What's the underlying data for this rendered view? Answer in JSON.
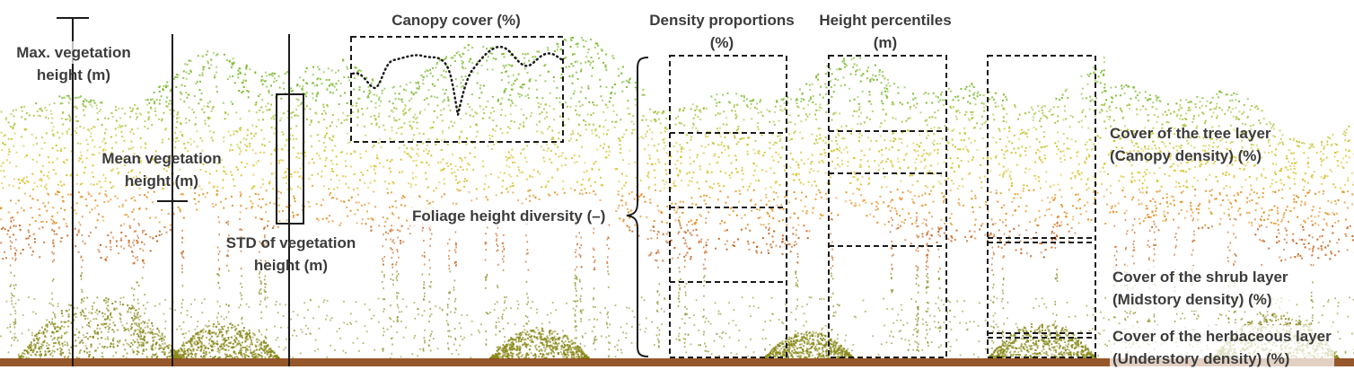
{
  "labels": {
    "max_height": [
      "Max. vegetation",
      "height (m)"
    ],
    "mean_height": [
      "Mean vegetation",
      "height (m)"
    ],
    "std_height": [
      "STD of vegetation",
      "height (m)"
    ],
    "canopy_cover": "Canopy cover (%)",
    "foliage_diversity": "Foliage height diversity (–)",
    "density_proportions": [
      "Density proportions",
      "(%)"
    ],
    "height_percentiles": [
      "Height percentiles",
      "(m)"
    ],
    "tree_layer": [
      "Cover of the tree layer",
      "(Canopy density) (%)"
    ],
    "shrub_layer": [
      "Cover of the shrub layer",
      "(Midstory density) (%)"
    ],
    "herb_layer": [
      "Cover of the herbaceous layer",
      "(Understory density) (%)"
    ]
  },
  "colors": {
    "canopy_top": "#7cba2e",
    "canopy_mid": "#d9c22a",
    "canopy_low": "#e4901f",
    "trunk_orange": "#c8641c",
    "understory": "#8a8a1c",
    "ground": "#8b4513",
    "lines": "#1a1a1a",
    "text": "#3c3c3c"
  }
}
